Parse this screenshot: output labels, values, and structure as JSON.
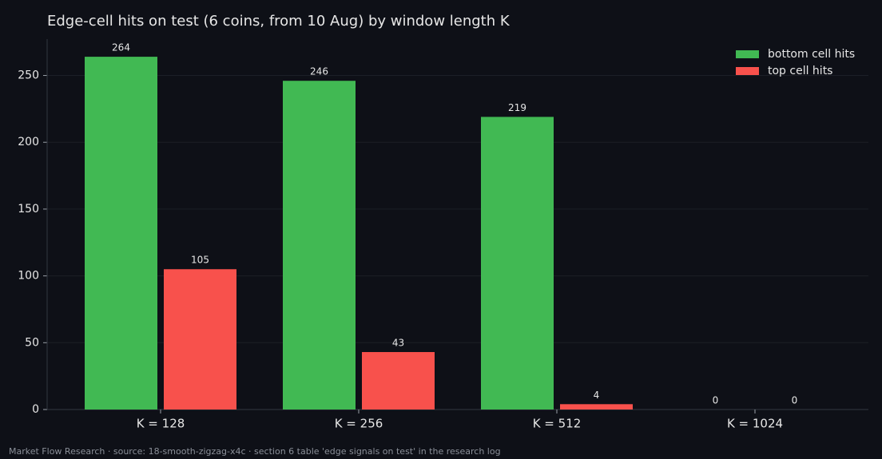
{
  "chart_data": {
    "type": "bar",
    "title": "Edge-cell hits on test (6 coins, from 10 Aug) by window length K",
    "categories": [
      "K = 128",
      "K = 256",
      "K = 512",
      "K = 1024"
    ],
    "series": [
      {
        "name": "bottom cell hits",
        "color": "#41b953",
        "values": [
          264,
          246,
          219,
          0
        ]
      },
      {
        "name": "top cell hits",
        "color": "#f8514c",
        "values": [
          105,
          43,
          4,
          0
        ]
      }
    ],
    "ylim": [
      0,
      277.2
    ],
    "yticks": [
      0,
      50,
      100,
      150,
      200,
      250
    ],
    "grid": true,
    "legend": "upper-right",
    "show_value_labels": true,
    "footer": "Market Flow Research · source: 18-smooth-zigzag-x4c · section 6 table 'edge signals on test' in the research log"
  }
}
